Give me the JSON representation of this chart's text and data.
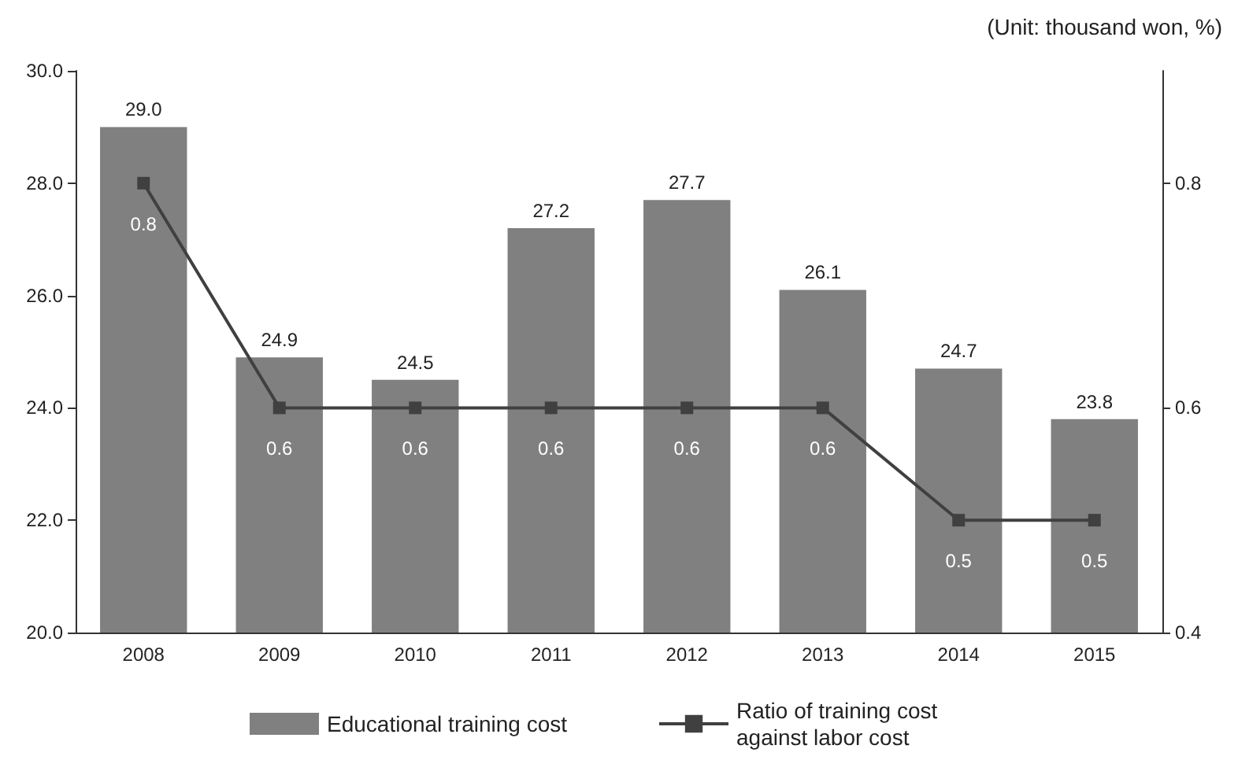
{
  "chart_data": {
    "type": "bar",
    "categories": [
      "2008",
      "2009",
      "2010",
      "2011",
      "2012",
      "2013",
      "2014",
      "2015"
    ],
    "series": [
      {
        "name": "Educational training cost",
        "color": "#808080",
        "values": [
          29.0,
          24.9,
          24.5,
          27.2,
          27.7,
          26.1,
          24.7,
          23.8
        ],
        "value_labels": [
          "29.0",
          "24.9",
          "24.5",
          "27.2",
          "27.7",
          "26.1",
          "24.7",
          "23.8"
        ]
      },
      {
        "name": "Ratio of training cost against labor cost",
        "type": "line",
        "axis": "y2",
        "color": "#404040",
        "marker": "square",
        "values": [
          0.8,
          0.6,
          0.6,
          0.6,
          0.6,
          0.6,
          0.5,
          0.5
        ],
        "value_labels": [
          "0.8",
          "0.6",
          "0.6",
          "0.6",
          "0.6",
          "0.6",
          "0.5",
          "0.5"
        ]
      }
    ],
    "ylim": [
      20,
      30
    ],
    "yticks": [
      {
        "value": 20,
        "label": "20.0"
      },
      {
        "value": 22,
        "label": "22.0"
      },
      {
        "value": 24,
        "label": "24.0"
      },
      {
        "value": 26,
        "label": "26.0"
      },
      {
        "value": 28,
        "label": "28.0"
      },
      {
        "value": 30,
        "label": "30.0"
      }
    ],
    "y2lim": [
      0.4,
      0.9
    ],
    "y2ticks": [
      0.4,
      0.6,
      0.8
    ],
    "annotations": [
      "(Unit: thousand won, %)"
    ],
    "legend": "bottom",
    "grid": false
  }
}
